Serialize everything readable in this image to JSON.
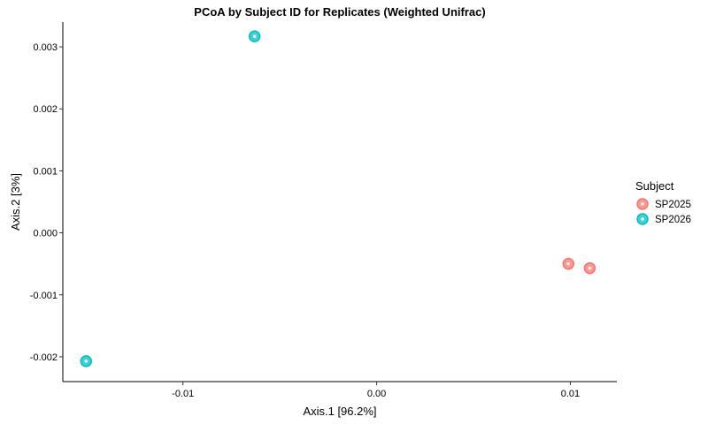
{
  "chart_data": {
    "type": "scatter",
    "title": "PCoA by Subject ID for Replicates (Weighted Unifrac)",
    "xlabel": "Axis.1   [96.2%]",
    "ylabel": "Axis.2   [3%]",
    "xlim": [
      -0.0162,
      0.0124
    ],
    "ylim": [
      -0.0024,
      0.0034
    ],
    "xticks": [
      -0.01,
      0.0,
      0.01
    ],
    "xtick_labels": [
      "-0.01",
      "0.00",
      "0.01"
    ],
    "yticks": [
      -0.002,
      -0.001,
      0.0,
      0.001,
      0.002,
      0.003
    ],
    "ytick_labels": [
      "-0.002",
      "-0.001",
      "0.000",
      "0.001",
      "0.002",
      "0.003"
    ],
    "grid": false,
    "legend": {
      "title": "Subject",
      "position": "right"
    },
    "series": [
      {
        "name": "SP2025",
        "color": "#F8766D",
        "points": [
          {
            "x": 0.0099,
            "y": -0.0005
          },
          {
            "x": 0.011,
            "y": -0.00057
          }
        ]
      },
      {
        "name": "SP2026",
        "color": "#00BFC4",
        "points": [
          {
            "x": -0.015,
            "y": -0.00207
          },
          {
            "x": -0.0063,
            "y": 0.00317
          }
        ]
      }
    ]
  }
}
